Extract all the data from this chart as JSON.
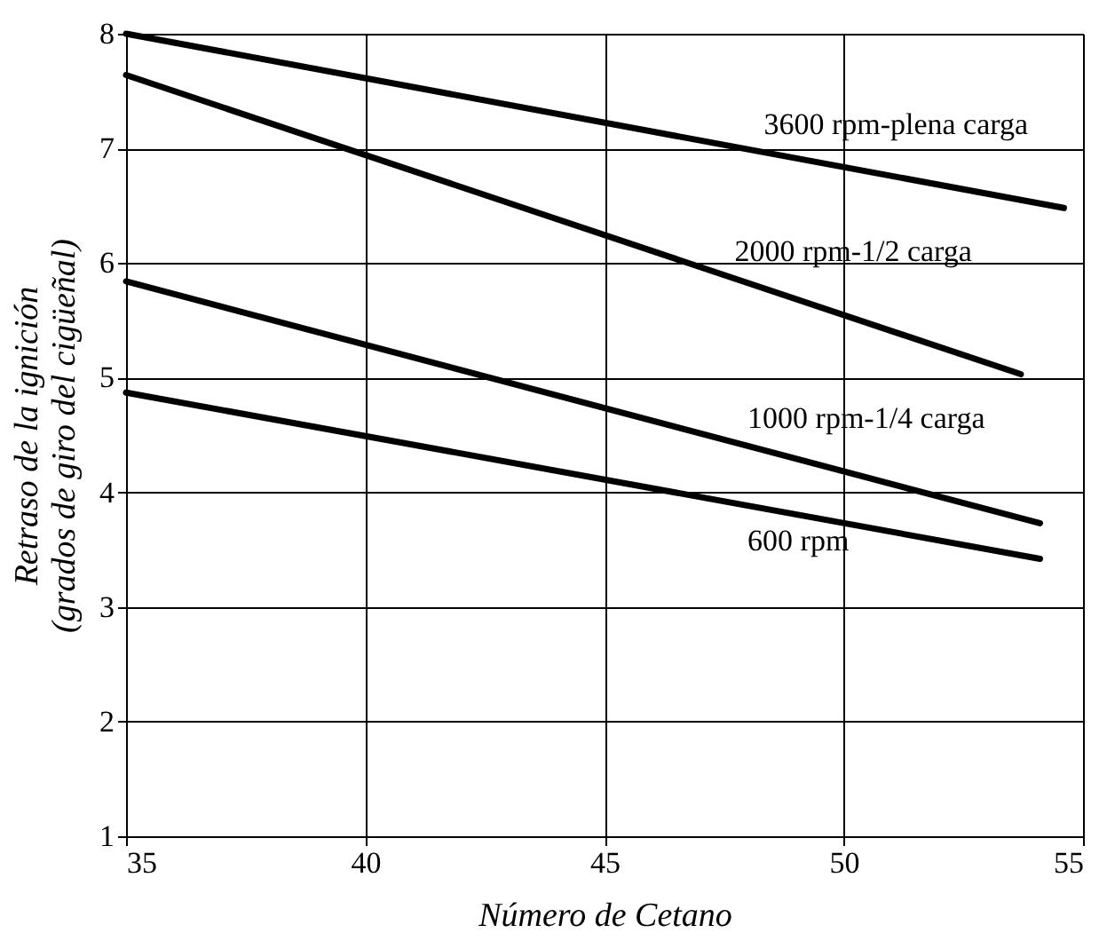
{
  "chart_data": {
    "type": "line",
    "xlabel": "Número de Cetano",
    "ylabel": "Retraso de la ignición\n(grados de giro del cigüeñal)",
    "xlim": [
      35,
      55
    ],
    "xticks": [
      35,
      40,
      45,
      50,
      55
    ],
    "ylim": [
      1,
      8
    ],
    "yticks": [
      1,
      2,
      3,
      4,
      5,
      6,
      7,
      8
    ],
    "grid": true,
    "marker": "none",
    "line_style": "solid",
    "series": [
      {
        "name": "3600 rpm-plena carga",
        "color": "#000000",
        "x": [
          35,
          54.6
        ],
        "values": [
          8.0,
          6.48
        ]
      },
      {
        "name": "2000 rpm-1/2 carga",
        "color": "#000000",
        "x": [
          35,
          53.7
        ],
        "values": [
          7.64,
          5.03
        ]
      },
      {
        "name": "1000 rpm-1/4 carga",
        "color": "#000000",
        "x": [
          35,
          54.1
        ],
        "values": [
          5.84,
          3.73
        ]
      },
      {
        "name": "600 rpm",
        "color": "#000000",
        "x": [
          35,
          54.1
        ],
        "values": [
          4.87,
          3.42
        ]
      }
    ]
  }
}
